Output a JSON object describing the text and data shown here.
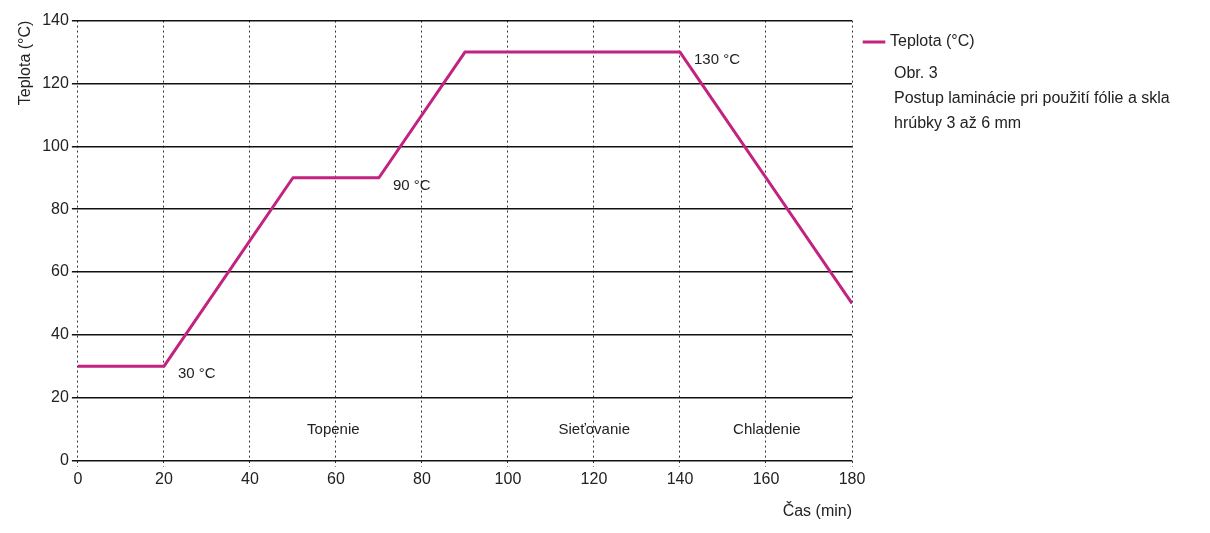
{
  "chart_data": {
    "type": "line",
    "xlabel": "Čas (min)",
    "ylabel": "Teplota (°C)",
    "x": [
      0,
      20,
      50,
      70,
      90,
      140,
      180
    ],
    "series": [
      {
        "name": "Teplota (°C)",
        "color": "#c2237e",
        "values": [
          30,
          30,
          90,
          90,
          130,
          130,
          50
        ]
      }
    ],
    "xlim": [
      0,
      180
    ],
    "xticks": [
      0,
      20,
      40,
      60,
      80,
      100,
      120,
      140,
      160,
      180
    ],
    "ylim": [
      0,
      140
    ],
    "yticks": [
      0,
      20,
      40,
      60,
      80,
      100,
      120,
      140
    ],
    "grid": true,
    "legend": "top right",
    "marker": "none",
    "line_style": "solid",
    "annotations": [
      {
        "text": "30 °C",
        "x": 20,
        "y": 30
      },
      {
        "text": "90 °C",
        "x": 70,
        "y": 90
      },
      {
        "text": "130 °C",
        "x": 140,
        "y": 130
      },
      "Topenie",
      "Sieťovanie",
      "Chladenie",
      "Obr. 3",
      "Postup laminácie pri použití fólie a skla hrúbky 3 až 6 mm"
    ]
  }
}
